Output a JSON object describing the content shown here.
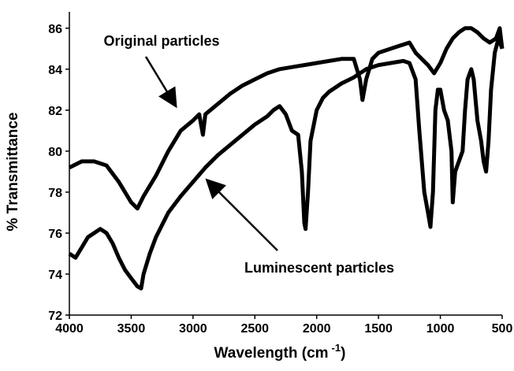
{
  "chart_data": {
    "type": "line",
    "xlabel": "Wavelength (cm",
    "xlabel_sup": "-1",
    "xlabel_end": ")",
    "ylabel": "% Transmittance",
    "x_reversed": true,
    "xlim": [
      4000,
      500
    ],
    "xticks": [
      4000,
      3500,
      3000,
      2500,
      2000,
      1500,
      1000,
      500
    ],
    "ylim": [
      72,
      86.8
    ],
    "yticks": [
      72,
      74,
      76,
      78,
      80,
      82,
      84,
      86
    ],
    "grid": false,
    "series": [
      {
        "name": "Original particles",
        "color": "#000000",
        "x": [
          4000,
          3900,
          3800,
          3700,
          3600,
          3500,
          3450,
          3400,
          3300,
          3200,
          3100,
          3000,
          2950,
          2920,
          2900,
          2800,
          2700,
          2600,
          2500,
          2400,
          2300,
          2200,
          2100,
          2000,
          1900,
          1800,
          1700,
          1650,
          1630,
          1600,
          1550,
          1500,
          1400,
          1300,
          1250,
          1200,
          1150,
          1100,
          1050,
          1000,
          950,
          900,
          850,
          800,
          750,
          700,
          650,
          600,
          550,
          520,
          500
        ],
        "values": [
          79.2,
          79.5,
          79.5,
          79.3,
          78.5,
          77.5,
          77.2,
          77.8,
          78.8,
          80,
          81,
          81.5,
          81.8,
          80.8,
          81.8,
          82.3,
          82.8,
          83.2,
          83.5,
          83.8,
          84,
          84.1,
          84.2,
          84.3,
          84.4,
          84.5,
          84.5,
          83.5,
          82.5,
          83.5,
          84.5,
          84.8,
          85,
          85.2,
          85.3,
          84.8,
          84.5,
          84.2,
          83.8,
          84.3,
          85,
          85.5,
          85.8,
          86,
          86,
          85.8,
          85.5,
          85.3,
          85.5,
          86,
          85
        ]
      },
      {
        "name": "Luminescent particles",
        "color": "#000000",
        "x": [
          4000,
          3950,
          3900,
          3850,
          3800,
          3750,
          3700,
          3650,
          3600,
          3550,
          3500,
          3450,
          3420,
          3400,
          3350,
          3300,
          3200,
          3100,
          3000,
          2900,
          2800,
          2700,
          2600,
          2500,
          2400,
          2350,
          2300,
          2250,
          2200,
          2150,
          2120,
          2100,
          2090,
          2070,
          2050,
          2000,
          1950,
          1900,
          1800,
          1700,
          1600,
          1500,
          1400,
          1300,
          1250,
          1200,
          1170,
          1130,
          1100,
          1080,
          1060,
          1040,
          1020,
          1000,
          970,
          940,
          910,
          900,
          880,
          850,
          820,
          800,
          780,
          750,
          730,
          700,
          670,
          650,
          630,
          610,
          590,
          560,
          530,
          500
        ],
        "values": [
          75,
          74.8,
          75.3,
          75.8,
          76,
          76.2,
          76,
          75.5,
          74.8,
          74.2,
          73.8,
          73.4,
          73.3,
          74,
          75,
          75.8,
          77,
          77.8,
          78.5,
          79.2,
          79.8,
          80.3,
          80.8,
          81.3,
          81.7,
          82,
          82.2,
          81.8,
          81,
          80.8,
          79,
          76.5,
          76.2,
          78,
          80.5,
          82,
          82.6,
          82.9,
          83.3,
          83.6,
          84,
          84.2,
          84.3,
          84.4,
          84.3,
          83.5,
          81,
          78,
          77,
          76.3,
          78,
          82,
          83,
          83,
          82,
          81.5,
          80,
          77.5,
          79,
          79.5,
          80,
          82,
          83.5,
          84,
          83.5,
          81.5,
          80.5,
          79.5,
          79,
          80.5,
          83,
          84.8,
          85.5,
          85
        ]
      }
    ]
  }
}
